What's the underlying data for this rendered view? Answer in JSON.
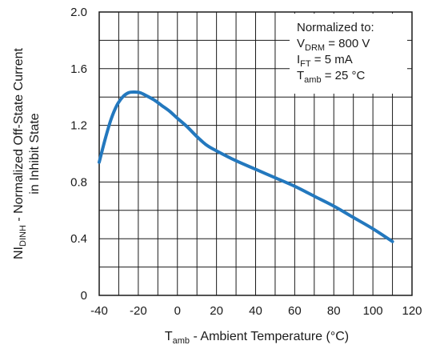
{
  "chart_data": {
    "type": "line",
    "title": "",
    "xlabel": {
      "main": "T",
      "sub": "amb",
      "rest": " - Ambient Temperature (°C)"
    },
    "ylabel": {
      "line1_main": "NI",
      "line1_sub": "DINH",
      "line1_rest": " - Normalized Off-State Current",
      "line2": "in Inhibit State"
    },
    "xlim": [
      -40,
      120
    ],
    "ylim": [
      0,
      2.0
    ],
    "x_ticks": [
      -40,
      -20,
      0,
      20,
      40,
      60,
      80,
      100,
      120
    ],
    "y_ticks": [
      0,
      0.4,
      0.8,
      1.2,
      1.6,
      2.0
    ],
    "x_tick_labels": [
      "-40",
      "-20",
      "0",
      "20",
      "40",
      "60",
      "80",
      "100",
      "120"
    ],
    "y_tick_labels": [
      "0",
      "0.4",
      "0.8",
      "1.2",
      "1.6",
      "2.0"
    ],
    "grid": true,
    "series": [
      {
        "color": "#2378be",
        "x": [
          -40,
          -37,
          -34,
          -31,
          -28,
          -25,
          -22,
          -19,
          -16,
          -12,
          -8,
          -4,
          0,
          5,
          10,
          15,
          20,
          30,
          40,
          50,
          60,
          70,
          80,
          90,
          100,
          110
        ],
        "y": [
          0.94,
          1.1,
          1.24,
          1.34,
          1.4,
          1.43,
          1.435,
          1.43,
          1.41,
          1.38,
          1.34,
          1.3,
          1.25,
          1.19,
          1.12,
          1.06,
          1.02,
          0.95,
          0.89,
          0.83,
          0.77,
          0.7,
          0.63,
          0.55,
          0.47,
          0.38
        ]
      }
    ],
    "annotation": {
      "line1": "Normalized to:",
      "line2": {
        "main": "V",
        "sub": "DRM",
        "rest": " = 800 V"
      },
      "line3": {
        "main": "I",
        "sub": "FT",
        "rest": " = 5 mA"
      },
      "line4": {
        "main": "T",
        "sub": "amb",
        "rest": " = 25 °C"
      }
    }
  }
}
